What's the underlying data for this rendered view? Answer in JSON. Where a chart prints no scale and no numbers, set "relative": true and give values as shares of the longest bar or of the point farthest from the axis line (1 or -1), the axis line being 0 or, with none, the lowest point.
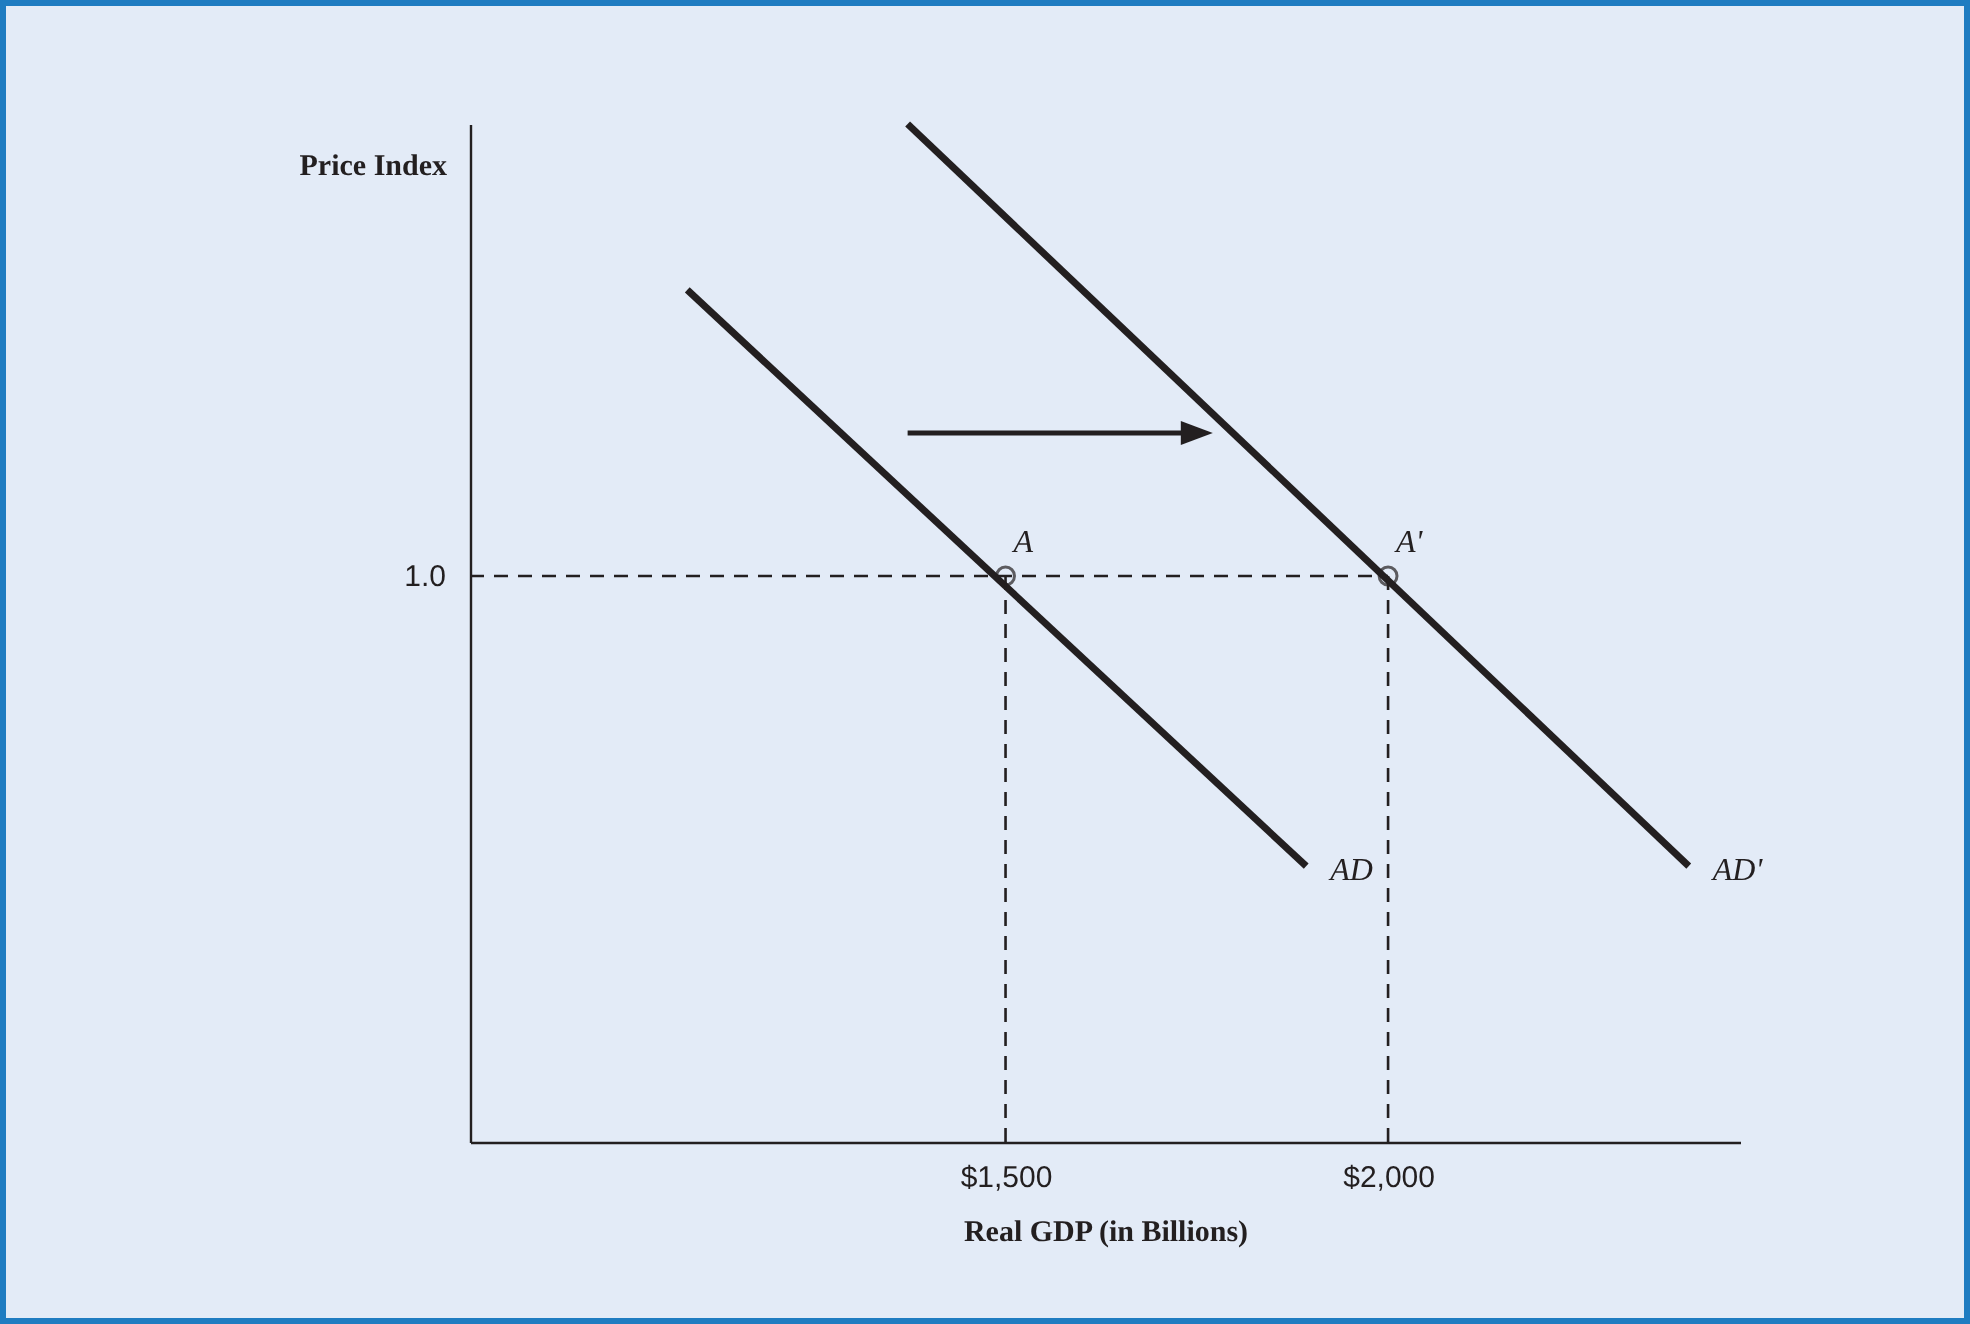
{
  "chart_data": {
    "type": "line",
    "xlabel": "Real GDP (in Billions)",
    "ylabel": "Price Index",
    "relative": true,
    "xlim": [
      800,
      2460
    ],
    "xticks": [
      {
        "value": 1500,
        "label": "$1,500"
      },
      {
        "value": 2000,
        "label": "$2,000"
      }
    ],
    "grid": false,
    "series": [
      {
        "name": "AD",
        "color": "#231f20",
        "x": [
          1084,
          1893
        ],
        "values": [
          0.837,
          0.271
        ]
      },
      {
        "name": "AD'",
        "color": "#231f20",
        "x": [
          1372,
          2393
        ],
        "values": [
          1,
          0.271
        ]
      },
      {
        "type": "scatter",
        "marker": "circle",
        "color": "#231f20",
        "x": [
          1500,
          2000
        ],
        "values": [
          0.556,
          0.556
        ]
      }
    ],
    "ref_lines": [
      {
        "axis": "y",
        "value": 0.556,
        "line_style": "dashed",
        "color": "#231f20"
      },
      {
        "axis": "x",
        "value": 1500,
        "line_style": "dashed",
        "color": "#231f20"
      },
      {
        "axis": "x",
        "value": 2000,
        "line_style": "dashed",
        "color": "#231f20"
      }
    ],
    "annotations": [
      "1.0",
      {
        "text": "A",
        "x": 1500,
        "y": 0.556
      },
      {
        "text": "A'",
        "x": 2000,
        "y": 0.556
      }
    ]
  }
}
